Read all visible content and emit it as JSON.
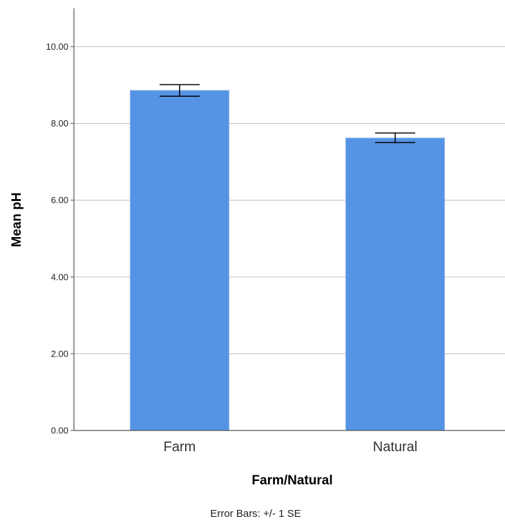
{
  "chart_data": {
    "type": "bar",
    "categories": [
      "Farm",
      "Natural"
    ],
    "values": [
      8.86,
      7.62
    ],
    "error_bars": [
      {
        "low": 8.71,
        "high": 9.01
      },
      {
        "low": 7.5,
        "high": 7.75
      }
    ],
    "xlabel": "Farm/Natural",
    "ylabel": "Mean pH",
    "ylim": [
      0,
      11
    ],
    "yticks": [
      0,
      2,
      4,
      6,
      8,
      10
    ],
    "ytick_labels": [
      "0.00",
      "2.00",
      "4.00",
      "6.00",
      "8.00",
      "10.00"
    ],
    "grid": true,
    "footnote": "Error Bars: +/- 1 SE",
    "colors": {
      "bar": "#5594e4",
      "bar_edge": "#8cb4e8",
      "grid": "#c8c8c8",
      "axis": "#555555",
      "error": "#000000"
    }
  }
}
